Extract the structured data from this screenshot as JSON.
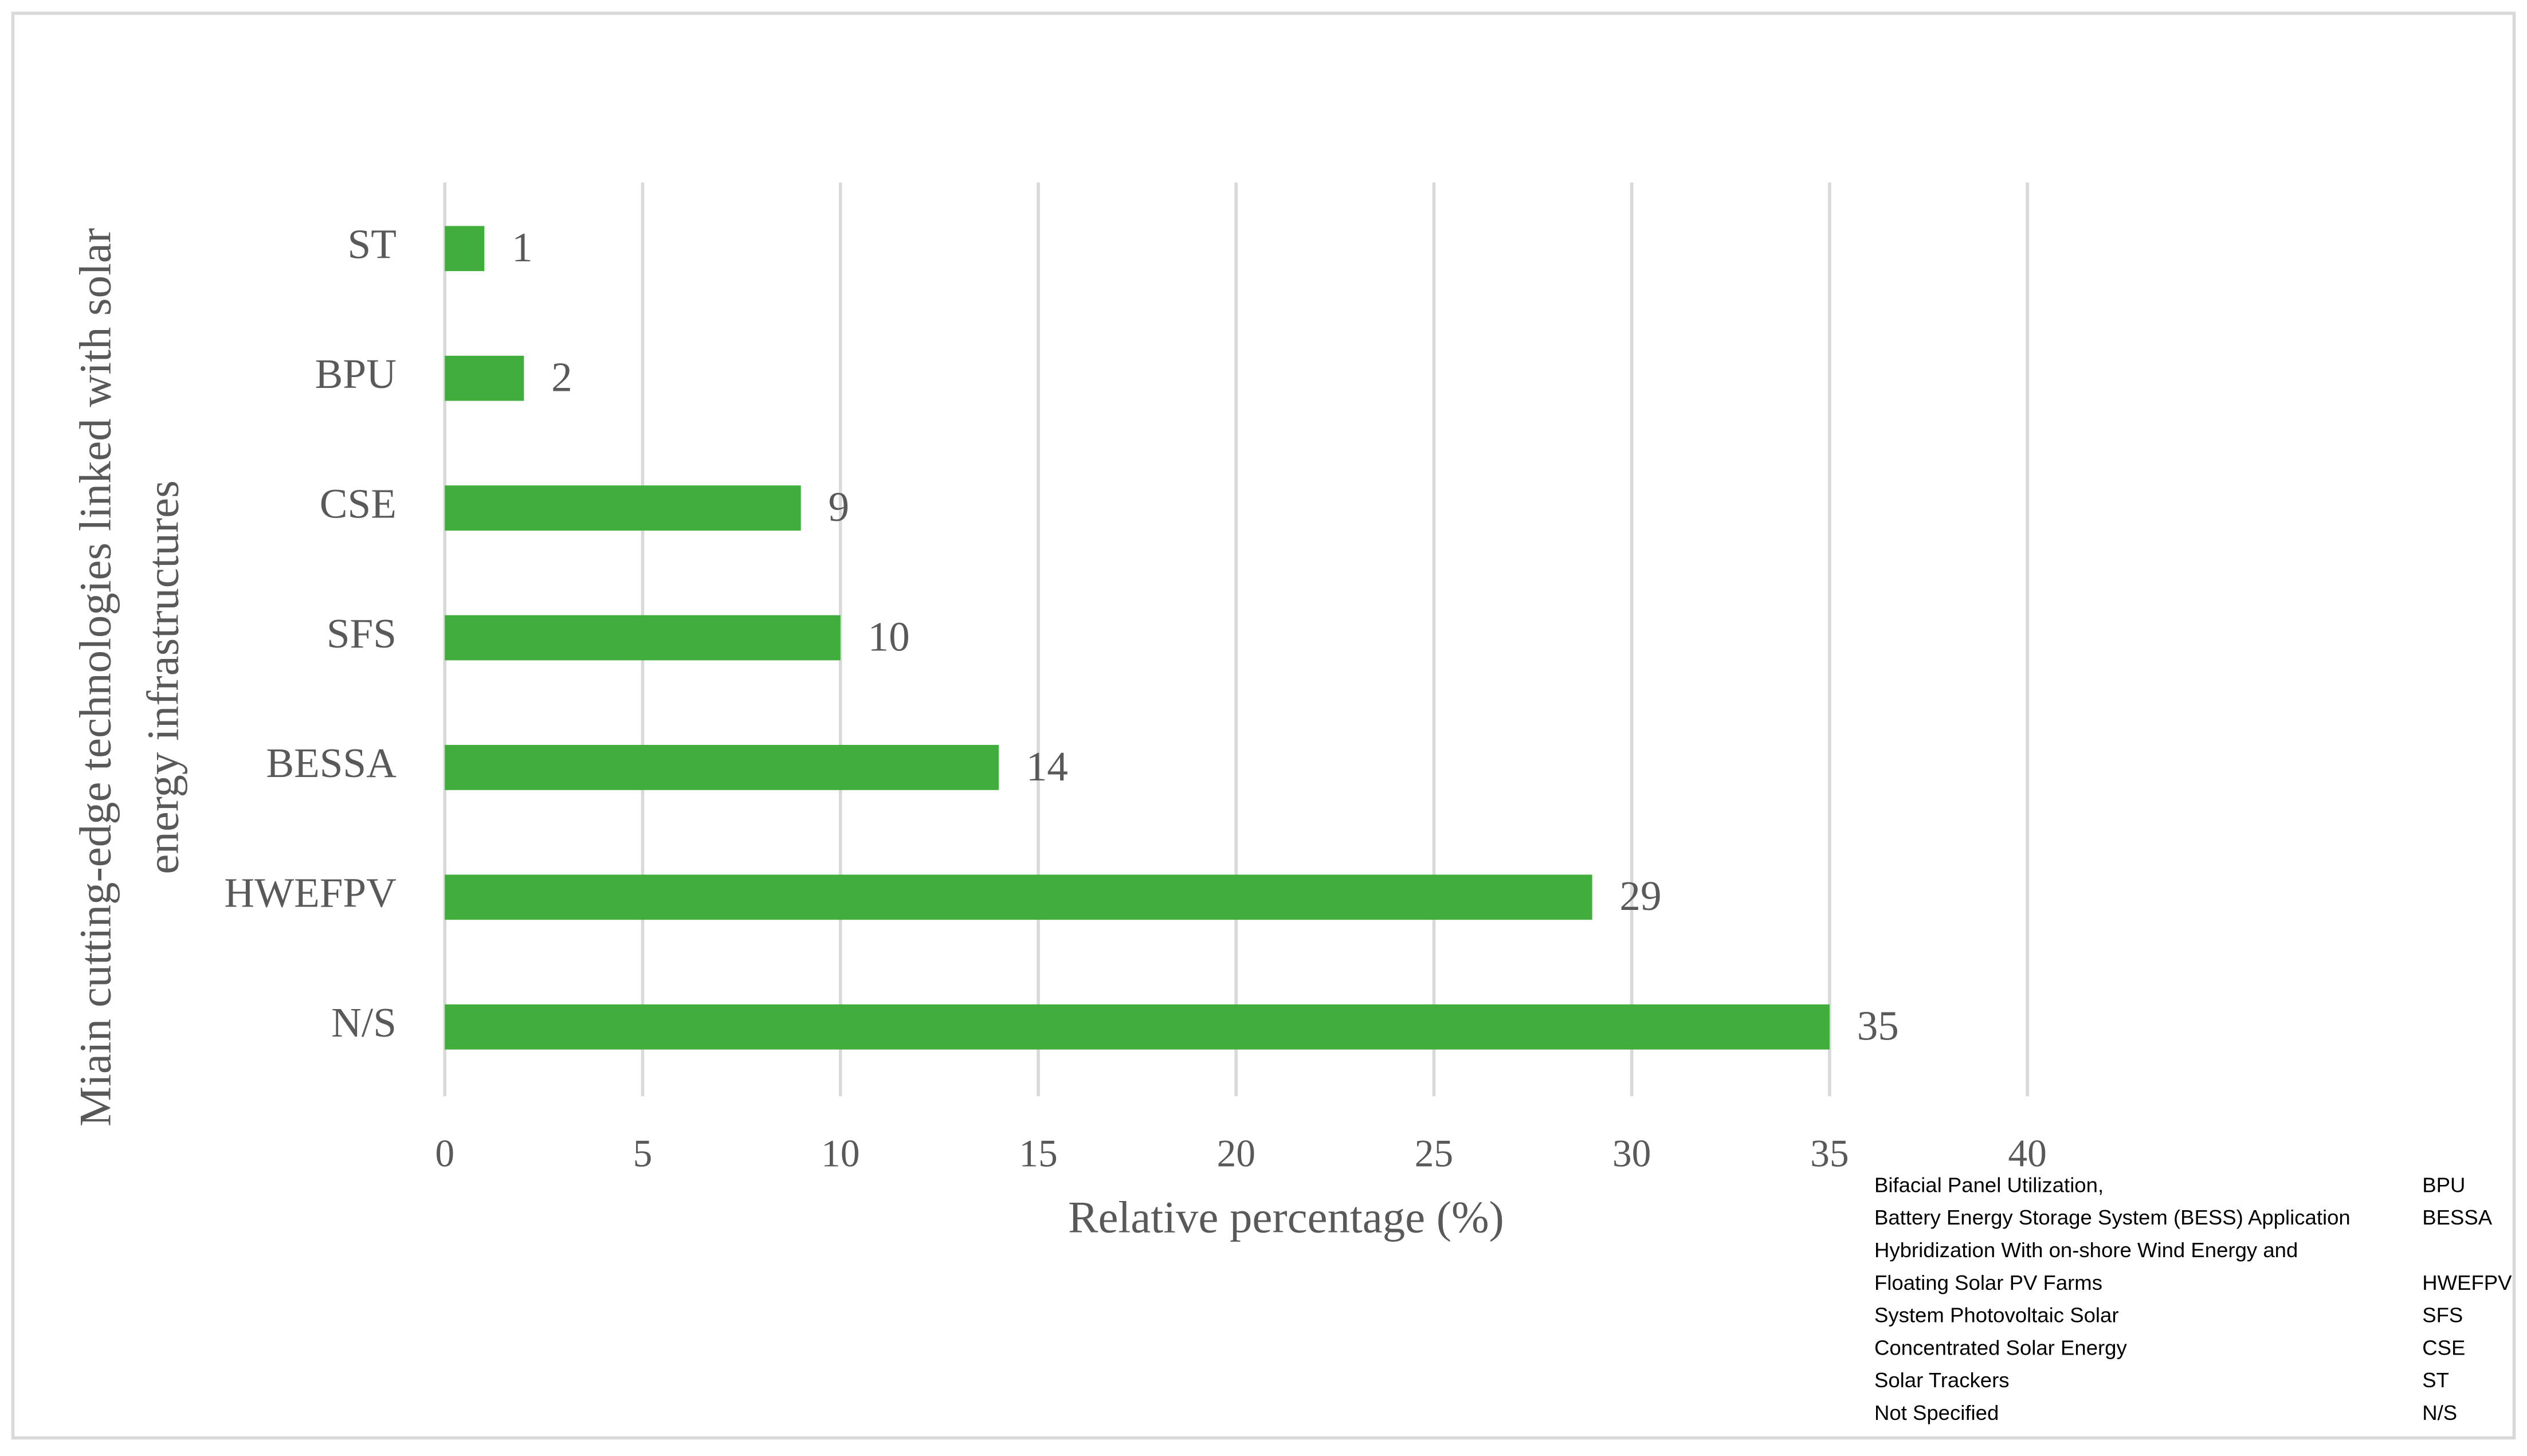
{
  "chart_data": {
    "type": "bar",
    "orientation": "horizontal",
    "xlabel": "Relative percentage (%)",
    "ylabel": [
      "Miain cutting-edge technologies linked with solar",
      "energy infrastructures"
    ],
    "categories": [
      "ST",
      "BPU",
      "CSE",
      "SFS",
      "BESSA",
      "HWEFPV",
      "N/S"
    ],
    "values": [
      1,
      2,
      9,
      10,
      14,
      29,
      35
    ],
    "color": "#41ad3c",
    "xlim": [
      0,
      40
    ],
    "xticks": [
      0,
      5,
      10,
      15,
      20,
      25,
      30,
      35,
      40
    ],
    "grid": true,
    "legend_table": {
      "rows": [
        [
          "Bifacial Panel Utilization,",
          "BPU"
        ],
        [
          "Battery Energy Storage System (BESS) Application",
          "BESSA"
        ],
        [
          "Hybridization With on-shore Wind Energy and"
        ],
        [
          "Floating Solar PV Farms",
          "HWEFPV"
        ],
        [
          "System Photovoltaic Solar",
          "SFS"
        ],
        [
          "Concentrated Solar Energy",
          "CSE"
        ],
        [
          "Solar Trackers",
          "ST"
        ],
        [
          "Not Specified",
          "N/S"
        ]
      ]
    }
  }
}
